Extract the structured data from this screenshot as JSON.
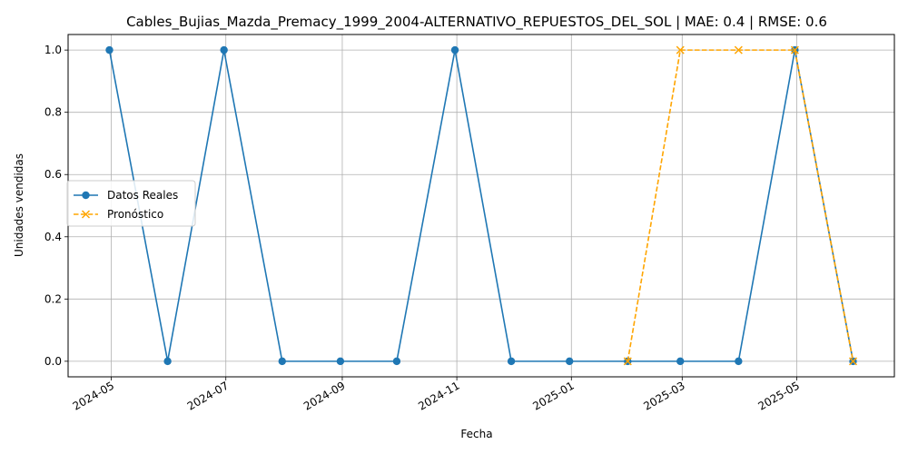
{
  "chart_data": {
    "type": "line",
    "title": "Cables_Bujias_Mazda_Premacy_1999_2004-ALTERNATIVO_REPUESTOS_DEL_SOL | MAE: 0.4 | RMSE: 0.6",
    "xlabel": "Fecha",
    "ylabel": "Unidades vendidas",
    "grid": true,
    "legend_position": "center-left",
    "xlim": [
      "2024-04-08",
      "2025-06-22"
    ],
    "ylim": [
      -0.05,
      1.05
    ],
    "x_ticks": [
      {
        "date": "2024-05-01",
        "label": "2024-05"
      },
      {
        "date": "2024-07-01",
        "label": "2024-07"
      },
      {
        "date": "2024-09-01",
        "label": "2024-09"
      },
      {
        "date": "2024-11-01",
        "label": "2024-11"
      },
      {
        "date": "2025-01-01",
        "label": "2025-01"
      },
      {
        "date": "2025-03-01",
        "label": "2025-03"
      },
      {
        "date": "2025-05-01",
        "label": "2025-05"
      }
    ],
    "y_ticks": [
      {
        "value": 0.0,
        "label": "0.0"
      },
      {
        "value": 0.2,
        "label": "0.2"
      },
      {
        "value": 0.4,
        "label": "0.4"
      },
      {
        "value": 0.6,
        "label": "0.6"
      },
      {
        "value": 0.8,
        "label": "0.8"
      },
      {
        "value": 1.0,
        "label": "1.0"
      }
    ],
    "series": [
      {
        "name": "Datos Reales",
        "color": "#1f77b4",
        "line_style": "solid",
        "marker": "circle",
        "x": [
          "2024-04-30",
          "2024-05-31",
          "2024-06-30",
          "2024-07-31",
          "2024-08-31",
          "2024-09-30",
          "2024-10-31",
          "2024-11-30",
          "2024-12-31",
          "2025-01-31",
          "2025-02-28",
          "2025-03-31",
          "2025-04-30",
          "2025-05-31"
        ],
        "values": [
          1,
          0,
          1,
          0,
          0,
          0,
          1,
          0,
          0,
          0,
          0,
          0,
          1,
          0
        ]
      },
      {
        "name": "Pronóstico",
        "color": "#ffa500",
        "line_style": "dashed",
        "marker": "x",
        "x": [
          "2025-01-31",
          "2025-02-28",
          "2025-03-31",
          "2025-04-30",
          "2025-05-31"
        ],
        "values": [
          0,
          1,
          1,
          1,
          0
        ]
      }
    ]
  }
}
